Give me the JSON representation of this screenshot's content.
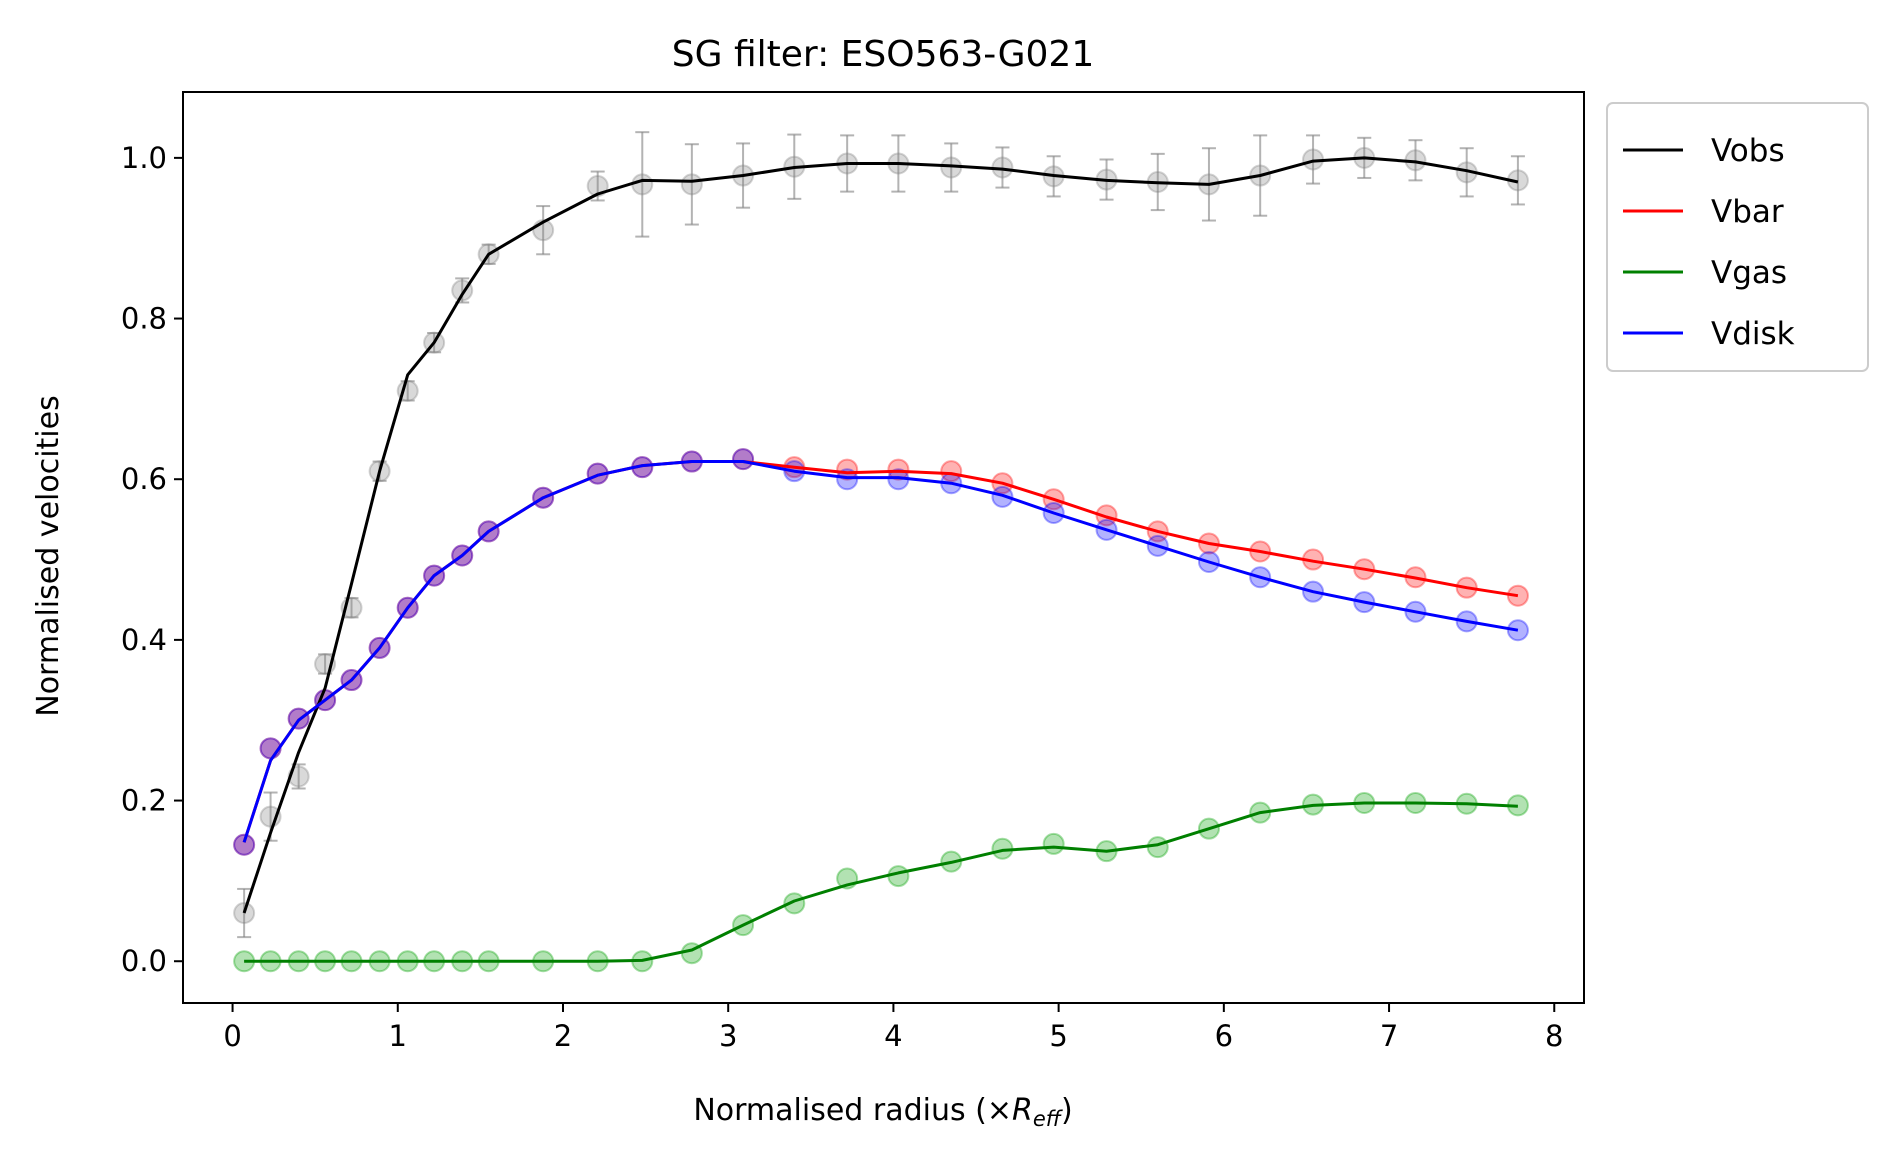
{
  "chart_data": {
    "type": "line",
    "title": "SG filter: ESO563-G021",
    "xlabel_prefix": "Normalised radius (×",
    "xlabel_symbol": "R",
    "xlabel_subscript": "eff",
    "xlabel_suffix": ")",
    "ylabel": "Normalised velocities",
    "xlim": [
      -0.3,
      8.18
    ],
    "ylim": [
      -0.052,
      1.082
    ],
    "xticks": [
      0,
      1,
      2,
      3,
      4,
      5,
      6,
      7,
      8
    ],
    "xtick_labels": [
      "0",
      "1",
      "2",
      "3",
      "4",
      "5",
      "6",
      "7",
      "8"
    ],
    "yticks": [
      0.0,
      0.2,
      0.4,
      0.6,
      0.8,
      1.0
    ],
    "ytick_labels": [
      "0.0",
      "0.2",
      "0.4",
      "0.6",
      "0.8",
      "1.0"
    ],
    "grid": false,
    "legend_position": "outside-top-right",
    "x": [
      0.07,
      0.23,
      0.4,
      0.56,
      0.72,
      0.89,
      1.06,
      1.22,
      1.39,
      1.55,
      1.88,
      2.21,
      2.48,
      2.78,
      3.09,
      3.4,
      3.72,
      4.03,
      4.35,
      4.66,
      4.97,
      5.29,
      5.6,
      5.91,
      6.22,
      6.54,
      6.85,
      7.16,
      7.47,
      7.78
    ],
    "series": [
      {
        "name": "Vobs",
        "color": "#000000",
        "marker_color": "#808080",
        "error_bars": true,
        "values": [
          0.06,
          0.18,
          0.23,
          0.37,
          0.44,
          0.61,
          0.71,
          0.77,
          0.835,
          0.88,
          0.91,
          0.965,
          0.967,
          0.967,
          0.978,
          0.989,
          0.993,
          0.993,
          0.988,
          0.988,
          0.977,
          0.973,
          0.97,
          0.967,
          0.978,
          0.998,
          1.0,
          0.997,
          0.982,
          0.972
        ],
        "line_values": [
          0.06,
          0.16,
          0.26,
          0.34,
          0.47,
          0.61,
          0.73,
          0.77,
          0.83,
          0.88,
          0.92,
          0.955,
          0.972,
          0.971,
          0.978,
          0.988,
          0.993,
          0.993,
          0.99,
          0.986,
          0.978,
          0.972,
          0.969,
          0.967,
          0.978,
          0.996,
          1.0,
          0.995,
          0.984,
          0.97
        ],
        "errors": [
          0.03,
          0.03,
          0.015,
          0.012,
          0.012,
          0.012,
          0.012,
          0.012,
          0.015,
          0.012,
          0.03,
          0.018,
          0.065,
          0.05,
          0.04,
          0.04,
          0.035,
          0.035,
          0.03,
          0.025,
          0.025,
          0.025,
          0.035,
          0.045,
          0.05,
          0.03,
          0.025,
          0.025,
          0.03,
          0.03
        ]
      },
      {
        "name": "Vbar",
        "color": "#ff0000",
        "marker_color": "#ff0000",
        "error_bars": false,
        "values": [
          0.145,
          0.265,
          0.302,
          0.325,
          0.35,
          0.39,
          0.44,
          0.48,
          0.505,
          0.535,
          0.577,
          0.607,
          0.615,
          0.622,
          0.625,
          0.615,
          0.612,
          0.612,
          0.61,
          0.595,
          0.575,
          0.555,
          0.535,
          0.52,
          0.51,
          0.5,
          0.488,
          0.478,
          0.465,
          0.455
        ],
        "line_values": [
          0.148,
          0.25,
          0.3,
          0.325,
          0.35,
          0.39,
          0.44,
          0.48,
          0.505,
          0.535,
          0.577,
          0.605,
          0.617,
          0.622,
          0.622,
          0.615,
          0.608,
          0.61,
          0.607,
          0.595,
          0.575,
          0.553,
          0.535,
          0.52,
          0.51,
          0.498,
          0.488,
          0.477,
          0.465,
          0.455
        ]
      },
      {
        "name": "Vgas",
        "color": "#008000",
        "marker_color": "#00a000",
        "error_bars": false,
        "values": [
          0.0,
          0.0,
          0.0,
          0.0,
          0.0,
          0.0,
          0.0,
          0.0,
          0.0,
          0.0,
          0.0,
          0.0,
          0.0,
          0.01,
          0.045,
          0.072,
          0.103,
          0.106,
          0.124,
          0.14,
          0.146,
          0.137,
          0.142,
          0.165,
          0.185,
          0.195,
          0.197,
          0.197,
          0.196,
          0.194
        ],
        "line_values": [
          0.0,
          0.0,
          0.0,
          0.0,
          0.0,
          0.0,
          0.0,
          0.0,
          0.0,
          0.0,
          0.0,
          0.0,
          0.001,
          0.014,
          0.045,
          0.075,
          0.095,
          0.11,
          0.123,
          0.138,
          0.142,
          0.137,
          0.145,
          0.165,
          0.185,
          0.194,
          0.197,
          0.197,
          0.196,
          0.193
        ]
      },
      {
        "name": "Vdisk",
        "color": "#0000ff",
        "marker_color": "#0000ff",
        "error_bars": false,
        "values": [
          0.145,
          0.265,
          0.302,
          0.325,
          0.35,
          0.39,
          0.44,
          0.48,
          0.505,
          0.535,
          0.577,
          0.607,
          0.615,
          0.622,
          0.625,
          0.61,
          0.6,
          0.6,
          0.595,
          0.578,
          0.558,
          0.537,
          0.517,
          0.497,
          0.478,
          0.46,
          0.447,
          0.435,
          0.423,
          0.412
        ],
        "line_values": [
          0.148,
          0.25,
          0.3,
          0.325,
          0.35,
          0.39,
          0.44,
          0.48,
          0.505,
          0.535,
          0.577,
          0.605,
          0.617,
          0.622,
          0.622,
          0.61,
          0.602,
          0.602,
          0.595,
          0.58,
          0.558,
          0.537,
          0.517,
          0.497,
          0.478,
          0.46,
          0.447,
          0.435,
          0.423,
          0.412
        ]
      }
    ]
  }
}
